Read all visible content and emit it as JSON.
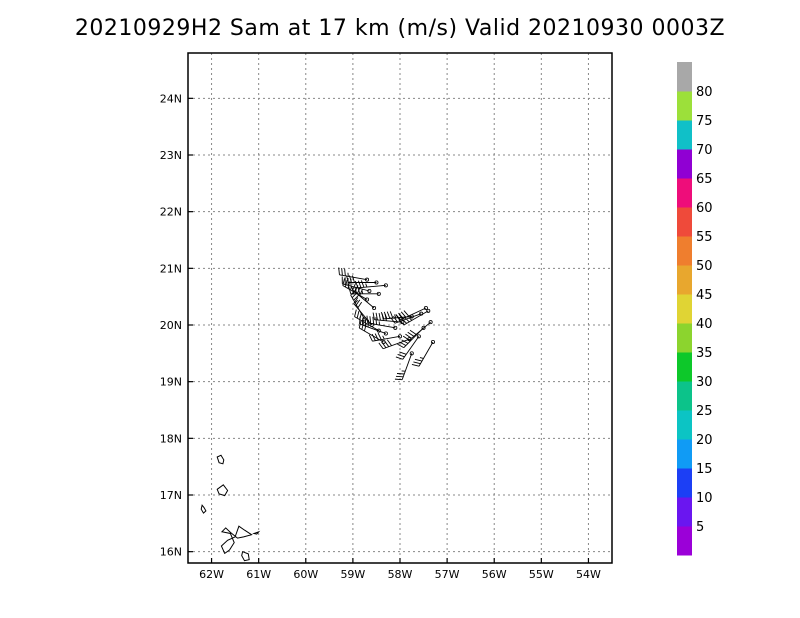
{
  "title": "20210929H2 Sam at 17 km (m/s) Valid 20210930 0003Z",
  "chart_data": {
    "type": "map",
    "x_ticks": [
      {
        "value": -62,
        "label": "62W"
      },
      {
        "value": -61,
        "label": "61W"
      },
      {
        "value": -60,
        "label": "60W"
      },
      {
        "value": -59,
        "label": "59W"
      },
      {
        "value": -58,
        "label": "58W"
      },
      {
        "value": -57,
        "label": "57W"
      },
      {
        "value": -56,
        "label": "56W"
      },
      {
        "value": -55,
        "label": "55W"
      },
      {
        "value": -54,
        "label": "54W"
      }
    ],
    "y_ticks": [
      {
        "value": 16,
        "label": "16N"
      },
      {
        "value": 17,
        "label": "17N"
      },
      {
        "value": 18,
        "label": "18N"
      },
      {
        "value": 19,
        "label": "19N"
      },
      {
        "value": 20,
        "label": "20N"
      },
      {
        "value": 21,
        "label": "21N"
      },
      {
        "value": 22,
        "label": "22N"
      },
      {
        "value": 23,
        "label": "23N"
      },
      {
        "value": 24,
        "label": "24N"
      }
    ],
    "xlim": [
      -62.5,
      -53.5
    ],
    "ylim": [
      15.8,
      24.8
    ],
    "grid": true,
    "grid_style": "dotted",
    "colorbar": {
      "labels": [
        "5",
        "10",
        "15",
        "20",
        "25",
        "30",
        "35",
        "40",
        "45",
        "50",
        "55",
        "60",
        "65",
        "70",
        "75",
        "80"
      ],
      "colors": [
        "#9b00d8",
        "#6a16f0",
        "#1c3ff5",
        "#109bf5",
        "#0cc4c4",
        "#0cc38a",
        "#0dc82a",
        "#8cd42e",
        "#e0d434",
        "#e8a72e",
        "#ef7e2e",
        "#ef4a3a",
        "#ee0d7a",
        "#9000d3",
        "#10c0c8",
        "#9ce03a",
        "#a8a8a8"
      ]
    },
    "islands": [
      {
        "name": "montserrat",
        "points": [
          [
            -62.2,
            16.82
          ],
          [
            -62.16,
            16.78
          ],
          [
            -62.12,
            16.72
          ],
          [
            -62.17,
            16.68
          ],
          [
            -62.22,
            16.75
          ]
        ]
      },
      {
        "name": "barbuda",
        "points": [
          [
            -61.88,
            17.67
          ],
          [
            -61.8,
            17.7
          ],
          [
            -61.74,
            17.62
          ],
          [
            -61.76,
            17.55
          ],
          [
            -61.84,
            17.57
          ]
        ]
      },
      {
        "name": "antigua",
        "points": [
          [
            -61.88,
            17.1
          ],
          [
            -61.75,
            17.18
          ],
          [
            -61.66,
            17.08
          ],
          [
            -61.72,
            16.99
          ],
          [
            -61.84,
            17.02
          ]
        ]
      },
      {
        "name": "guadeloupe",
        "points": [
          [
            -61.78,
            16.35
          ],
          [
            -61.6,
            16.32
          ],
          [
            -61.52,
            16.16
          ],
          [
            -61.62,
            16.03
          ],
          [
            -61.72,
            15.97
          ],
          [
            -61.79,
            16.1
          ],
          [
            -61.66,
            16.2
          ],
          [
            -61.5,
            16.26
          ],
          [
            -61.42,
            16.45
          ],
          [
            -61.3,
            16.38
          ],
          [
            -61.15,
            16.3
          ],
          [
            -61.32,
            16.26
          ],
          [
            -61.45,
            16.24
          ],
          [
            -61.6,
            16.34
          ],
          [
            -61.7,
            16.42
          ]
        ]
      },
      {
        "name": "marie-galante",
        "points": [
          [
            -61.34,
            16.0
          ],
          [
            -61.22,
            15.96
          ],
          [
            -61.2,
            15.86
          ],
          [
            -61.3,
            15.84
          ],
          [
            -61.36,
            15.93
          ]
        ]
      },
      {
        "name": "la-desirade",
        "points": [
          [
            -61.1,
            16.32
          ],
          [
            -61.0,
            16.35
          ],
          [
            -61.04,
            16.31
          ]
        ]
      }
    ],
    "wind_obs": [
      {
        "lon": -58.7,
        "lat": 20.8,
        "dir": 280,
        "speed": 35
      },
      {
        "lon": -58.5,
        "lat": 20.75,
        "dir": 270,
        "speed": 30
      },
      {
        "lon": -58.3,
        "lat": 20.7,
        "dir": 265,
        "speed": 35
      },
      {
        "lon": -58.65,
        "lat": 20.6,
        "dir": 285,
        "speed": 40
      },
      {
        "lon": -58.45,
        "lat": 20.55,
        "dir": 270,
        "speed": 45
      },
      {
        "lon": -58.7,
        "lat": 20.45,
        "dir": 300,
        "speed": 35
      },
      {
        "lon": -58.55,
        "lat": 20.3,
        "dir": 310,
        "speed": 40
      },
      {
        "lon": -58.75,
        "lat": 20.1,
        "dir": 330,
        "speed": 35
      },
      {
        "lon": -58.6,
        "lat": 20.0,
        "dir": 320,
        "speed": 30
      },
      {
        "lon": -58.45,
        "lat": 19.9,
        "dir": 300,
        "speed": 35
      },
      {
        "lon": -58.3,
        "lat": 19.85,
        "dir": 290,
        "speed": 40
      },
      {
        "lon": -58.1,
        "lat": 19.95,
        "dir": 280,
        "speed": 45
      },
      {
        "lon": -57.95,
        "lat": 20.05,
        "dir": 275,
        "speed": 50
      },
      {
        "lon": -57.75,
        "lat": 20.15,
        "dir": 265,
        "speed": 45
      },
      {
        "lon": -57.55,
        "lat": 20.2,
        "dir": 250,
        "speed": 40
      },
      {
        "lon": -57.4,
        "lat": 20.25,
        "dir": 240,
        "speed": 35
      },
      {
        "lon": -57.35,
        "lat": 20.05,
        "dir": 230,
        "speed": 40
      },
      {
        "lon": -57.5,
        "lat": 19.95,
        "dir": 225,
        "speed": 35
      },
      {
        "lon": -57.6,
        "lat": 19.8,
        "dir": 215,
        "speed": 30
      },
      {
        "lon": -57.3,
        "lat": 19.7,
        "dir": 210,
        "speed": 35
      },
      {
        "lon": -57.8,
        "lat": 19.75,
        "dir": 250,
        "speed": 40
      },
      {
        "lon": -58.0,
        "lat": 19.8,
        "dir": 260,
        "speed": 45
      },
      {
        "lon": -57.75,
        "lat": 19.5,
        "dir": 200,
        "speed": 35
      },
      {
        "lon": -58.35,
        "lat": 19.7,
        "dir": 300,
        "speed": 30
      },
      {
        "lon": -57.45,
        "lat": 20.3,
        "dir": 245,
        "speed": 40
      }
    ]
  }
}
